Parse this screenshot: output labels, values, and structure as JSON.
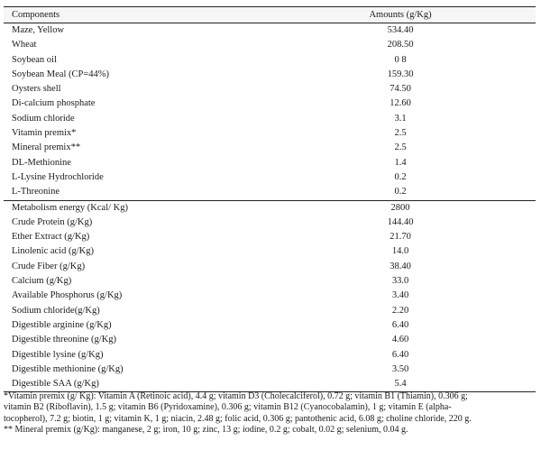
{
  "table": {
    "header": {
      "components": "Components",
      "amounts": "Amounts (g/Kg)"
    },
    "ingredients": [
      {
        "name": "Maze, Yellow",
        "value": "534.40"
      },
      {
        "name": "Wheat",
        "value": "208.50"
      },
      {
        "name": "Soybean oil",
        "value": "0 8"
      },
      {
        "name": "Soybean Meal (CP=44%)",
        "value": "159.30"
      },
      {
        "name": "Oysters shell",
        "value": "74.50"
      },
      {
        "name": "Di-calcium phosphate",
        "value": "12.60"
      },
      {
        "name": "Sodium chloride",
        "value": "3.1"
      },
      {
        "name": "Vitamin premix*",
        "value": "2.5"
      },
      {
        "name": "Mineral premix**",
        "value": "2.5"
      },
      {
        "name": "DL-Methionine",
        "value": "1.4"
      },
      {
        "name": "L-Lysine Hydrochloride",
        "value": "0.2"
      },
      {
        "name": "L-Threonine",
        "value": "0.2"
      }
    ],
    "nutrients": [
      {
        "name": "Metabolism energy (Kcal/ Kg)",
        "value": "2800"
      },
      {
        "name": "Crude Protein (g/Kg)",
        "value": "144.40"
      },
      {
        "name": "Ether Extract (g/Kg)",
        "value": "21.70"
      },
      {
        "name": "Linolenic acid (g/Kg)",
        "value": "14.0"
      },
      {
        "name": "Crude Fiber (g/Kg)",
        "value": "38.40"
      },
      {
        "name": "Calcium (g/Kg)",
        "value": "33.0"
      },
      {
        "name": "Available Phosphorus (g/Kg)",
        "value": "3.40"
      },
      {
        "name": "Sodium  chloride(g/Kg)",
        "value": "2.20"
      },
      {
        "name": "Digestible arginine (g/Kg)",
        "value": "6.40"
      },
      {
        "name": "Digestible threonine (g/Kg)",
        "value": "4.60"
      },
      {
        "name": "Digestible lysine (g/Kg)",
        "value": "6.40"
      },
      {
        "name": "Digestible methionine (g/Kg)",
        "value": "3.50"
      },
      {
        "name": "Digestible SAA (g/Kg)",
        "value": "5.4"
      }
    ]
  },
  "footnotes": {
    "vitamin_line1": "*Vitamin premix (g/ Kg): Vitamin A (Retinoic acid), 4.4 g; vitamin D3 (Cholecalciferol), 0.72 g; vitamin B1 (Thiamin), 0.306 g;",
    "vitamin_line2": "vitamin B2 (Riboflavin), 1.5 g; vitamin B6 (Pyridoxamine), 0.306 g; vitamin B12 (Cyanocobalamin), 1 g; vitamin E (alpha-",
    "vitamin_line3": "tocopherol), 7.2 g; biotin, 1 g; vitamin K, 1 g; niacin, 2.48 g; folic acid, 0.306 g; pantothenic acid, 6.08 g; choline chloride, 220 g.",
    "mineral_line": "** Mineral premix (g/Kg): manganese, 2 g; iron, 10 g; zinc, 13 g; iodine, 0.2 g; cobalt, 0.02 g; selenium, 0.04 g."
  }
}
